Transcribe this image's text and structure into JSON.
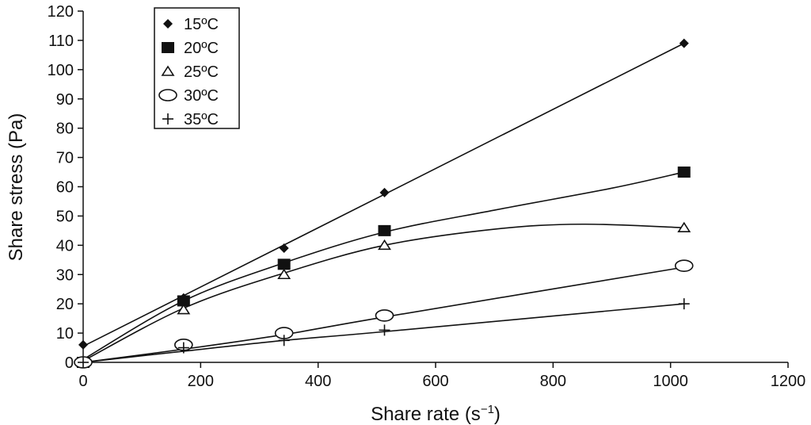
{
  "chart_data": {
    "type": "scatter",
    "xlabel": "Share rate (s",
    "xlabel_sup": "−1",
    "xlabel_close": ")",
    "ylabel": "Share stress (Pa)",
    "xlim": [
      0,
      1200
    ],
    "ylim": [
      0,
      120
    ],
    "x_ticks": [
      0,
      200,
      400,
      600,
      800,
      1000,
      1200
    ],
    "y_ticks": [
      0,
      10,
      20,
      30,
      40,
      50,
      60,
      70,
      80,
      90,
      100,
      110,
      120
    ],
    "grid": false,
    "legend_position": "top-left",
    "series": [
      {
        "name": "15ºC",
        "marker": "diamond",
        "x": [
          0,
          171,
          342,
          513,
          1023
        ],
        "y": [
          6,
          22,
          39,
          58,
          109
        ],
        "fit": [
          [
            0,
            5.5
          ],
          [
            1023,
            109
          ]
        ]
      },
      {
        "name": "20ºC",
        "marker": "square",
        "x": [
          0,
          171,
          342,
          513,
          1023
        ],
        "y": [
          0,
          21,
          33.5,
          45,
          65
        ],
        "fit": [
          [
            0,
            1
          ],
          [
            171,
            21
          ],
          [
            342,
            34
          ],
          [
            513,
            44.5
          ],
          [
            700,
            52
          ],
          [
            900,
            59.5
          ],
          [
            1023,
            65
          ]
        ]
      },
      {
        "name": "25ºC",
        "marker": "triangle",
        "x": [
          0,
          171,
          342,
          513,
          1023
        ],
        "y": [
          0,
          18,
          30,
          40,
          46
        ],
        "fit": [
          [
            0,
            0.5
          ],
          [
            171,
            18.5
          ],
          [
            342,
            30.5
          ],
          [
            513,
            40
          ],
          [
            700,
            45.5
          ],
          [
            850,
            47.2
          ],
          [
            1023,
            46
          ]
        ]
      },
      {
        "name": "30ºC",
        "marker": "circle",
        "x": [
          0,
          171,
          342,
          513,
          1023
        ],
        "y": [
          0,
          6,
          10,
          16,
          33
        ],
        "fit": [
          [
            0,
            0
          ],
          [
            171,
            4.5
          ],
          [
            342,
            9.5
          ],
          [
            513,
            15.5
          ],
          [
            1023,
            32.5
          ]
        ]
      },
      {
        "name": "35ºC",
        "marker": "plus",
        "x": [
          0,
          171,
          342,
          513,
          1023
        ],
        "y": [
          0,
          5,
          7.5,
          11,
          20
        ],
        "fit": [
          [
            0,
            0
          ],
          [
            171,
            3.8
          ],
          [
            342,
            7.5
          ],
          [
            513,
            10.5
          ],
          [
            1023,
            20
          ]
        ]
      }
    ]
  }
}
